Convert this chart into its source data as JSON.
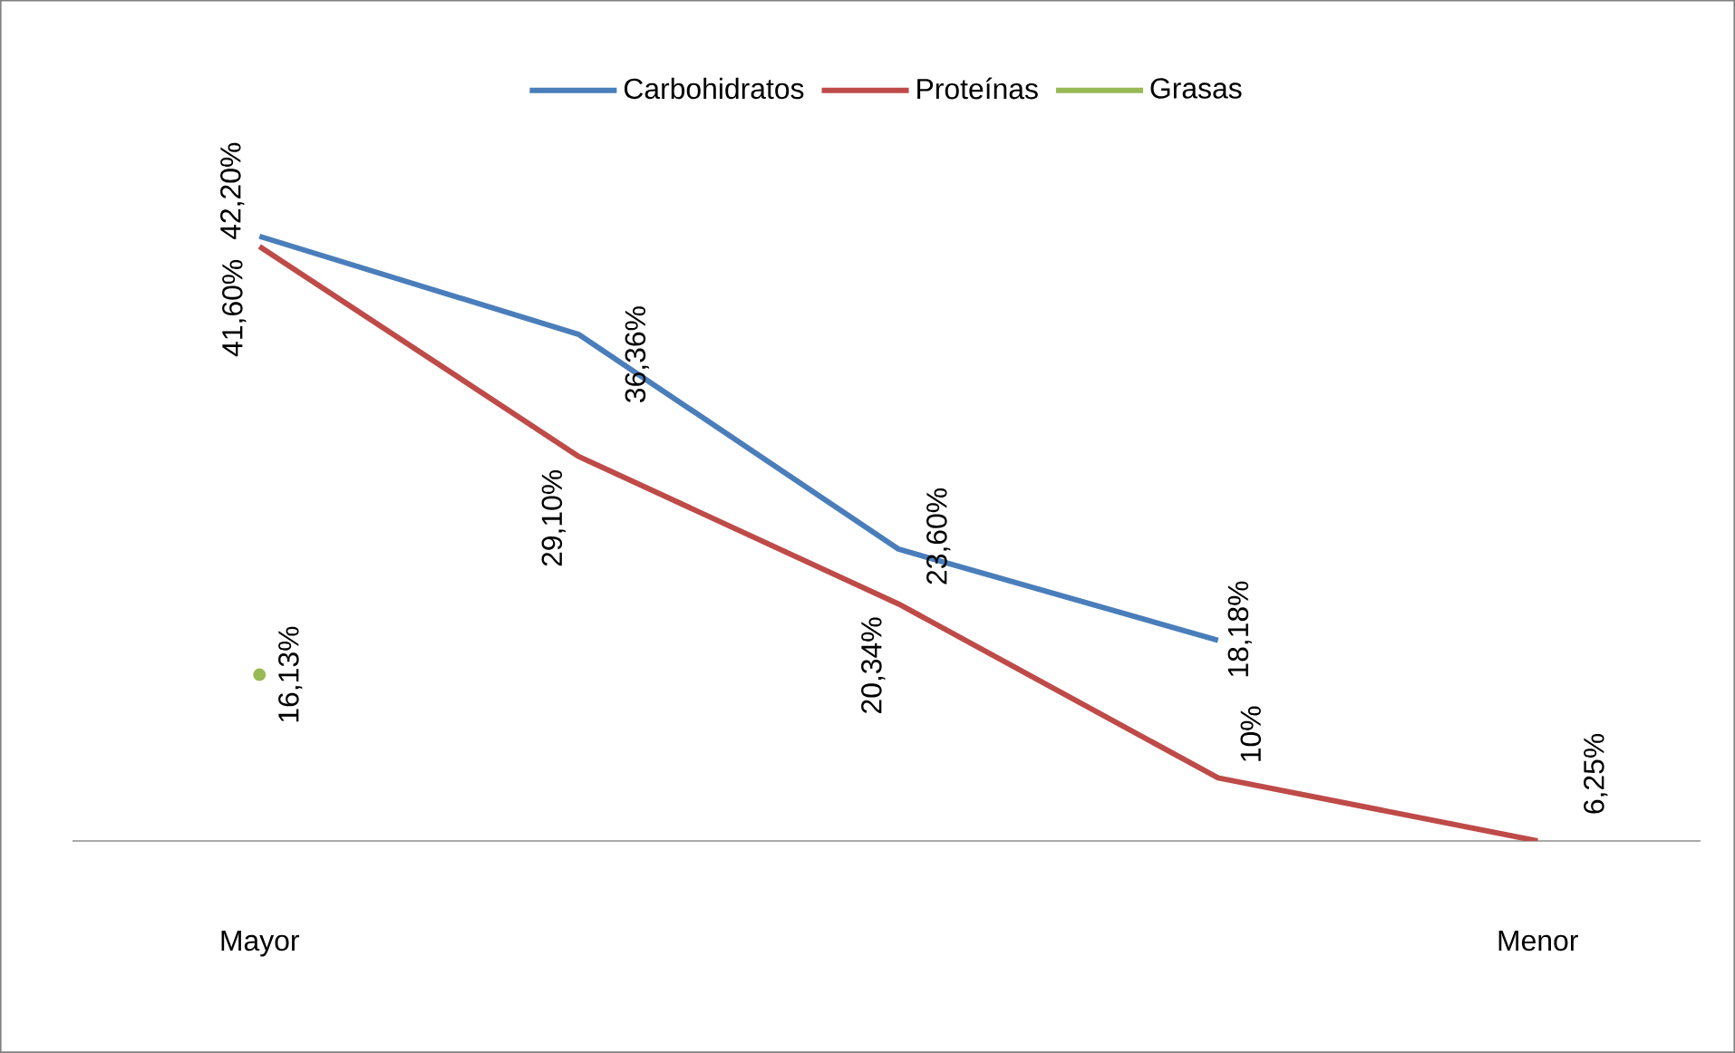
{
  "chart_data": {
    "type": "line",
    "categories": [
      "Mayor",
      null,
      null,
      null,
      "Menor"
    ],
    "tick_labels": "x",
    "legend": "top",
    "marker": "none",
    "line_style": "solid",
    "grid": false,
    "series": [
      {
        "name": "Carbohidratos",
        "color": "#4a7ebb",
        "values": [
          42.2,
          36.36,
          23.6,
          18.18,
          null
        ],
        "value_labels": [
          "42,20%",
          "36,36%",
          "23,60%",
          "18,18%",
          null
        ]
      },
      {
        "name": "Proteínas",
        "color": "#be4b48",
        "values": [
          41.6,
          29.1,
          20.34,
          10,
          6.25
        ],
        "value_labels": [
          "41,60%",
          "29,10%",
          "20,34%",
          "10%",
          "6,25%"
        ]
      },
      {
        "name": "Grasas",
        "color": "#98b954",
        "marker": "circle",
        "values": [
          16.13,
          null,
          null,
          null,
          null
        ],
        "value_labels": [
          "16,13%",
          null,
          null,
          null,
          null
        ]
      }
    ]
  }
}
